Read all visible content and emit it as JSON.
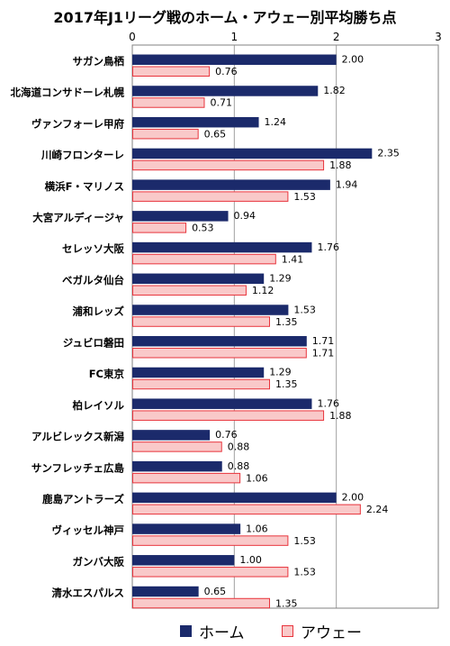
{
  "chart_data": {
    "type": "bar",
    "orientation": "horizontal",
    "title": "2017年J1リーグ戦のホーム・アウェー別平均勝ち点",
    "xlim": [
      0,
      3
    ],
    "xticks": [
      "0",
      "1",
      "2",
      "3"
    ],
    "grid": "vertical",
    "legend_position": "bottom",
    "categories": [
      "サガン鳥栖",
      "北海道コンサドーレ札幌",
      "ヴァンフォーレ甲府",
      "川崎フロンターレ",
      "横浜F・マリノス",
      "大宮アルディージャ",
      "セレッソ大阪",
      "ベガルタ仙台",
      "浦和レッズ",
      "ジュビロ磐田",
      "FC東京",
      "柏レイソル",
      "アルビレックス新潟",
      "サンフレッチェ広島",
      "鹿島アントラーズ",
      "ヴィッセル神戸",
      "ガンバ大阪",
      "清水エスパルス"
    ],
    "series": [
      {
        "name": "ホーム",
        "color": "#1b2a6b",
        "values": [
          2.0,
          1.82,
          1.24,
          2.35,
          1.94,
          0.94,
          1.76,
          1.29,
          1.53,
          1.71,
          1.29,
          1.76,
          0.76,
          0.88,
          2.0,
          1.06,
          1.0,
          0.65
        ],
        "labels": [
          "2.00",
          "1.82",
          "1.24",
          "2.35",
          "1.94",
          "0.94",
          "1.76",
          "1.29",
          "1.53",
          "1.71",
          "1.29",
          "1.76",
          "0.76",
          "0.88",
          "2.00",
          "1.06",
          "1.00",
          "0.65"
        ]
      },
      {
        "name": "アウェー",
        "color": "#f9c9c9",
        "border_color": "#e8343c",
        "values": [
          0.76,
          0.71,
          0.65,
          1.88,
          1.53,
          0.53,
          1.41,
          1.12,
          1.35,
          1.71,
          1.35,
          1.88,
          0.88,
          1.06,
          2.24,
          1.53,
          1.53,
          1.35
        ],
        "labels": [
          "0.76",
          "0.71",
          "0.65",
          "1.88",
          "1.53",
          "0.53",
          "1.41",
          "1.12",
          "1.35",
          "1.71",
          "1.35",
          "1.88",
          "0.88",
          "1.06",
          "2.24",
          "1.53",
          "1.53",
          "1.35"
        ]
      }
    ]
  }
}
